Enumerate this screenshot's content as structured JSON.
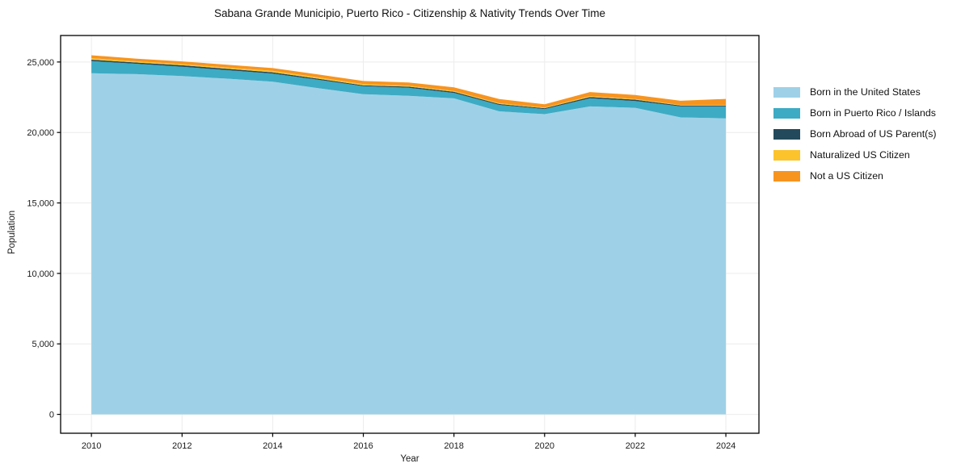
{
  "chart_data": {
    "type": "area",
    "stacked": true,
    "title": "Sabana Grande Municipio, Puerto Rico - Citizenship & Nativity Trends Over Time",
    "xlabel": "Year",
    "ylabel": "Population",
    "x": [
      2010,
      2011,
      2012,
      2013,
      2014,
      2015,
      2016,
      2017,
      2018,
      2019,
      2020,
      2021,
      2022,
      2023,
      2024
    ],
    "series": [
      {
        "name": "Born in the United States",
        "color": "#9ed1e7",
        "values": [
          24200,
          24140,
          24000,
          23820,
          23600,
          23150,
          22710,
          22600,
          22420,
          21500,
          21300,
          21850,
          21750,
          21070,
          21000
        ]
      },
      {
        "name": "Born in Puerto Rico / Islands",
        "color": "#3dabc4",
        "values": [
          860,
          730,
          660,
          600,
          580,
          590,
          570,
          570,
          380,
          450,
          360,
          570,
          480,
          780,
          850
        ]
      },
      {
        "name": "Born Abroad of US Parent(s)",
        "color": "#234a5c",
        "values": [
          100,
          90,
          110,
          100,
          90,
          80,
          70,
          80,
          90,
          70,
          60,
          100,
          100,
          60,
          70
        ]
      },
      {
        "name": "Naturalized US Citizen",
        "color": "#fcc32d",
        "values": [
          110,
          90,
          80,
          90,
          100,
          90,
          80,
          70,
          60,
          60,
          50,
          60,
          50,
          40,
          40
        ]
      },
      {
        "name": "Not a US Citizen",
        "color": "#f79420",
        "values": [
          210,
          190,
          190,
          200,
          200,
          210,
          220,
          230,
          250,
          290,
          230,
          290,
          280,
          300,
          420
        ]
      }
    ],
    "xlim": [
      2009.32,
      2024.73
    ],
    "ylim": [
      -1340,
      26880
    ],
    "x_ticks": {
      "values": [
        2010,
        2012,
        2014,
        2016,
        2018,
        2020,
        2022,
        2024
      ],
      "labels": [
        "2010",
        "2012",
        "2014",
        "2016",
        "2018",
        "2020",
        "2022",
        "2024"
      ]
    },
    "y_ticks": {
      "values": [
        0,
        5000,
        10000,
        15000,
        20000,
        25000
      ],
      "labels": [
        "0",
        "5,000",
        "10,000",
        "15,000",
        "20,000",
        "25,000"
      ]
    },
    "grid": true,
    "legend_position": "right"
  }
}
